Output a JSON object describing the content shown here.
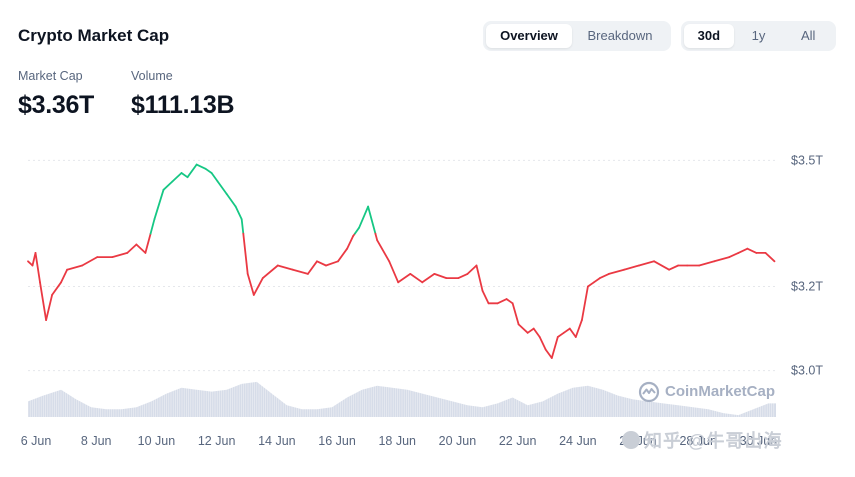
{
  "header": {
    "title": "Crypto Market Cap"
  },
  "view_tabs": [
    {
      "label": "Overview",
      "active": true
    },
    {
      "label": "Breakdown",
      "active": false
    }
  ],
  "range_tabs": [
    {
      "label": "30d",
      "active": true
    },
    {
      "label": "1y",
      "active": false
    },
    {
      "label": "All",
      "active": false
    }
  ],
  "stats": {
    "market_cap": {
      "label": "Market Cap",
      "value": "$3.36T"
    },
    "volume": {
      "label": "Volume",
      "value": "$111.13B"
    }
  },
  "watermark": {
    "brand": "CoinMarketCap",
    "overlay_text": "知乎 @牛哥出海"
  },
  "colors": {
    "up": "#16c784",
    "down": "#ea3943",
    "volume": "#cfd6e4",
    "grid": "#e5e7eb",
    "axis_text": "#58667e"
  },
  "chart_data": {
    "type": "line",
    "title": "Crypto Market Cap",
    "xlabel": "",
    "ylabel": "",
    "y_unit": "trillion USD",
    "ylim": [
      2.98,
      3.52
    ],
    "yticks": [
      3.0,
      3.2,
      3.5
    ],
    "ytick_labels": [
      "$3.0T",
      "$3.2T",
      "$3.5T"
    ],
    "xlim": [
      5.7,
      30.55
    ],
    "xticks": [
      6,
      8,
      10,
      12,
      14,
      16,
      18,
      20,
      22,
      24,
      26,
      28,
      30
    ],
    "xtick_labels": [
      "6 Jun",
      "8 Jun",
      "10 Jun",
      "12 Jun",
      "14 Jun",
      "16 Jun",
      "18 Jun",
      "20 Jun",
      "22 Jun",
      "24 Jun",
      "26 Jun",
      "28 Jun",
      "30 Jun"
    ],
    "baseline": 3.326,
    "series": [
      {
        "name": "Market Cap",
        "x": [
          5.7,
          5.85,
          5.95,
          6.1,
          6.3,
          6.5,
          6.8,
          7.0,
          7.5,
          8.0,
          8.5,
          9.0,
          9.3,
          9.6,
          9.9,
          10.2,
          10.5,
          10.8,
          11.0,
          11.3,
          11.6,
          11.8,
          12.0,
          12.3,
          12.6,
          12.8,
          13.0,
          13.2,
          13.5,
          14.0,
          14.5,
          15.0,
          15.3,
          15.6,
          16.0,
          16.3,
          16.5,
          16.7,
          17.0,
          17.3,
          17.7,
          18.0,
          18.4,
          18.8,
          19.2,
          19.6,
          20.0,
          20.3,
          20.6,
          20.8,
          21.0,
          21.3,
          21.6,
          21.8,
          22.0,
          22.3,
          22.5,
          22.7,
          22.9,
          23.1,
          23.3,
          23.5,
          23.7,
          23.9,
          24.1,
          24.3,
          24.5,
          24.7,
          25.0,
          25.5,
          26.0,
          26.5,
          27.0,
          27.3,
          27.6,
          28.0,
          28.5,
          29.0,
          29.3,
          29.6,
          29.9,
          30.2,
          30.5
        ],
        "y": [
          3.26,
          3.25,
          3.28,
          3.21,
          3.12,
          3.18,
          3.21,
          3.24,
          3.25,
          3.27,
          3.27,
          3.28,
          3.3,
          3.28,
          3.36,
          3.43,
          3.45,
          3.47,
          3.46,
          3.49,
          3.48,
          3.47,
          3.45,
          3.42,
          3.39,
          3.36,
          3.23,
          3.18,
          3.22,
          3.25,
          3.24,
          3.23,
          3.26,
          3.25,
          3.26,
          3.29,
          3.32,
          3.34,
          3.39,
          3.31,
          3.26,
          3.21,
          3.23,
          3.21,
          3.23,
          3.22,
          3.22,
          3.23,
          3.25,
          3.19,
          3.16,
          3.16,
          3.17,
          3.16,
          3.11,
          3.09,
          3.1,
          3.08,
          3.05,
          3.03,
          3.08,
          3.09,
          3.1,
          3.08,
          3.12,
          3.2,
          3.21,
          3.22,
          3.23,
          3.24,
          3.25,
          3.26,
          3.24,
          3.25,
          3.25,
          3.25,
          3.26,
          3.27,
          3.28,
          3.29,
          3.28,
          3.28,
          3.26
        ]
      },
      {
        "name": "Volume",
        "x": [
          5.7,
          6.2,
          6.8,
          7.3,
          7.8,
          8.3,
          8.8,
          9.3,
          9.8,
          10.3,
          10.8,
          11.3,
          11.8,
          12.3,
          12.8,
          13.3,
          13.8,
          14.3,
          14.8,
          15.3,
          15.8,
          16.3,
          16.8,
          17.3,
          17.8,
          18.3,
          18.8,
          19.3,
          19.8,
          20.3,
          20.8,
          21.3,
          21.8,
          22.3,
          22.8,
          23.3,
          23.8,
          24.3,
          24.8,
          25.3,
          25.8,
          26.3,
          26.8,
          27.3,
          27.8,
          28.3,
          28.8,
          29.3,
          29.8,
          30.3,
          30.55
        ],
        "y": [
          0.4,
          0.55,
          0.7,
          0.45,
          0.25,
          0.2,
          0.2,
          0.25,
          0.4,
          0.6,
          0.75,
          0.7,
          0.65,
          0.7,
          0.85,
          0.9,
          0.6,
          0.3,
          0.2,
          0.2,
          0.25,
          0.5,
          0.7,
          0.8,
          0.75,
          0.7,
          0.6,
          0.5,
          0.4,
          0.3,
          0.25,
          0.35,
          0.5,
          0.3,
          0.4,
          0.6,
          0.75,
          0.8,
          0.7,
          0.55,
          0.45,
          0.4,
          0.35,
          0.3,
          0.25,
          0.2,
          0.1,
          0.05,
          0.2,
          0.35,
          0.35
        ]
      }
    ]
  }
}
